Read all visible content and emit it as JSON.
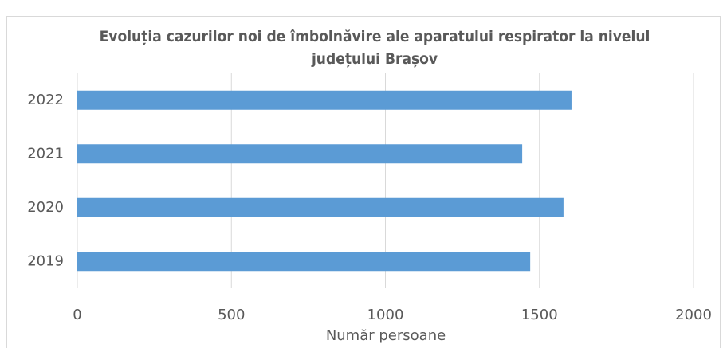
{
  "chart_data": {
    "type": "bar",
    "orientation": "horizontal",
    "title": "Evoluția cazurilor noi de îmbolnăvire ale aparatului respirator la nivelul județului Brașov",
    "categories": [
      "2019",
      "2020",
      "2021",
      "2022"
    ],
    "values": [
      1470,
      1578,
      1444,
      1604
    ],
    "color": "#5b9bd5",
    "xlabel": "Număr persoane",
    "xlim": [
      0,
      2000
    ],
    "xticks": [
      0,
      500,
      1000,
      1500,
      2000
    ],
    "grid": true
  }
}
